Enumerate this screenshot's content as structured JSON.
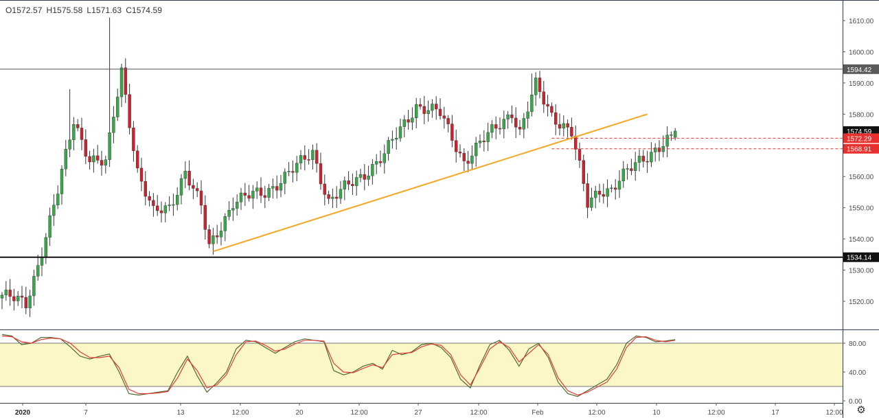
{
  "ohlc": {
    "open": "O1572.57",
    "high": "H1575.58",
    "low": "L1571.63",
    "close": "C1574.59"
  },
  "colors": {
    "up": "#26a69a",
    "down": "#ef5350",
    "up_body": "#3aa64a",
    "down_body": "#c8242f",
    "trendline": "#f5a623",
    "stoch_k": "#4c6b2f",
    "stoch_d": "#e53935",
    "stoch_band": "#fbf7c6",
    "level_red": "#e8302e"
  },
  "settings_icon": "gear-icon",
  "chart_data": [
    {
      "type": "candlestick",
      "title": "",
      "ylim": [
        1512,
        1615
      ],
      "y_ticks": [
        "1610.00",
        "1600.00",
        "1590.00",
        "1580.00",
        "1570.00",
        "1560.00",
        "1550.00",
        "1540.00",
        "1530.00",
        "1520.00"
      ],
      "x_ticks": [
        "2020",
        "7",
        "13",
        "12:00",
        "20",
        "12:00",
        "27",
        "12:00",
        "Feb",
        "12:00",
        "10",
        "12:00",
        "17",
        "12:00"
      ],
      "grid": false,
      "bar_count": 170,
      "anchors": [
        {
          "i": 0,
          "c": 1522
        },
        {
          "i": 6,
          "c": 1519
        },
        {
          "i": 9,
          "c": 1532
        },
        {
          "i": 14,
          "c": 1555
        },
        {
          "i": 18,
          "c": 1578
        },
        {
          "i": 22,
          "c": 1566
        },
        {
          "i": 26,
          "c": 1564
        },
        {
          "i": 30,
          "c": 1594
        },
        {
          "i": 34,
          "c": 1562
        },
        {
          "i": 38,
          "c": 1548
        },
        {
          "i": 42,
          "c": 1550
        },
        {
          "i": 46,
          "c": 1562
        },
        {
          "i": 50,
          "c": 1550
        },
        {
          "i": 52,
          "c": 1537
        },
        {
          "i": 58,
          "c": 1552
        },
        {
          "i": 66,
          "c": 1555
        },
        {
          "i": 74,
          "c": 1563
        },
        {
          "i": 78,
          "c": 1568
        },
        {
          "i": 82,
          "c": 1552
        },
        {
          "i": 90,
          "c": 1560
        },
        {
          "i": 96,
          "c": 1567
        },
        {
          "i": 104,
          "c": 1583
        },
        {
          "i": 110,
          "c": 1580
        },
        {
          "i": 116,
          "c": 1565
        },
        {
          "i": 122,
          "c": 1573
        },
        {
          "i": 128,
          "c": 1581
        },
        {
          "i": 130,
          "c": 1574
        },
        {
          "i": 134,
          "c": 1589
        },
        {
          "i": 138,
          "c": 1580
        },
        {
          "i": 143,
          "c": 1574
        },
        {
          "i": 147,
          "c": 1551
        },
        {
          "i": 150,
          "c": 1556
        },
        {
          "i": 153,
          "c": 1556
        },
        {
          "i": 156,
          "c": 1560
        },
        {
          "i": 160,
          "c": 1565
        },
        {
          "i": 164,
          "c": 1569
        },
        {
          "i": 168,
          "c": 1572
        },
        {
          "i": 169,
          "c": 1574.59
        }
      ],
      "high_spikes": [
        {
          "i": 27,
          "h": 1611
        },
        {
          "i": 17,
          "h": 1588
        },
        {
          "i": 133,
          "h": 1593
        }
      ],
      "levels": [
        {
          "name": "resistance",
          "value": 1594.42,
          "label": "1594.42",
          "style": "thin-dark"
        },
        {
          "name": "support",
          "value": 1534.14,
          "label": "1534.14",
          "style": "thick-black"
        },
        {
          "name": "current",
          "value": 1574.59,
          "label": "1574.59",
          "style": "dark-badge"
        },
        {
          "name": "level-red-1",
          "value": 1572.29,
          "label": "1572.29",
          "style": "red-dashed"
        },
        {
          "name": "level-red-2",
          "value": 1568.91,
          "label": "1568.91",
          "style": "red-dashed"
        }
      ],
      "trendline": {
        "from": {
          "i": 53,
          "y": 1536
        },
        "to": {
          "i": 162,
          "y": 1580
        }
      }
    },
    {
      "type": "line",
      "title": "",
      "ylim": [
        0,
        100
      ],
      "y_ticks": [
        "80.00",
        "40.00",
        "0.00"
      ],
      "band": [
        20,
        80
      ],
      "series": [
        {
          "name": "",
          "values": [
            92,
            90,
            78,
            80,
            88,
            88,
            86,
            75,
            62,
            58,
            62,
            65,
            40,
            10,
            8,
            10,
            12,
            14,
            40,
            62,
            35,
            12,
            25,
            40,
            72,
            84,
            82,
            74,
            66,
            74,
            82,
            86,
            84,
            82,
            42,
            36,
            40,
            48,
            52,
            44,
            70,
            64,
            68,
            78,
            80,
            74,
            60,
            30,
            18,
            50,
            78,
            84,
            70,
            48,
            72,
            80,
            60,
            26,
            10,
            6,
            14,
            22,
            30,
            50,
            80,
            90,
            88,
            82,
            83,
            85
          ]
        },
        {
          "name": "",
          "values": [
            90,
            89,
            82,
            80,
            85,
            87,
            86,
            80,
            68,
            60,
            60,
            62,
            46,
            16,
            10,
            10,
            11,
            13,
            32,
            58,
            42,
            18,
            22,
            36,
            64,
            82,
            83,
            77,
            69,
            72,
            79,
            84,
            84,
            83,
            52,
            40,
            39,
            45,
            50,
            46,
            64,
            66,
            67,
            75,
            79,
            77,
            64,
            36,
            22,
            46,
            72,
            82,
            74,
            54,
            66,
            78,
            64,
            32,
            14,
            8,
            12,
            19,
            26,
            44,
            74,
            88,
            89,
            84,
            82,
            84
          ]
        }
      ]
    }
  ]
}
